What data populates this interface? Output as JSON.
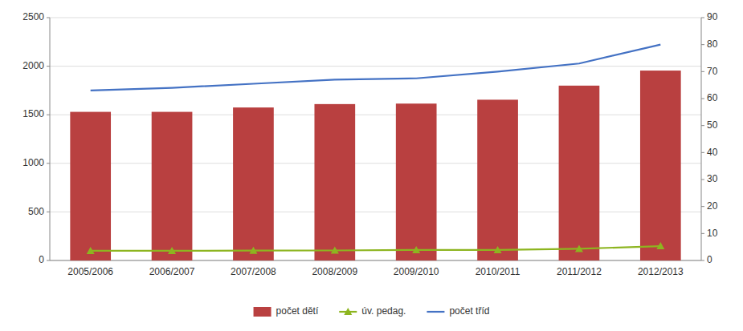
{
  "chart_data": {
    "type": "bar",
    "categories": [
      "2005/2006",
      "2006/2007",
      "2007/2008",
      "2008/2009",
      "2009/2010",
      "2010/2011",
      "2011/2012",
      "2012/2013"
    ],
    "series": [
      {
        "name": "počet dětí",
        "type": "bar",
        "color": "#b94040",
        "values": [
          1530,
          1530,
          1575,
          1610,
          1615,
          1655,
          1800,
          1955
        ]
      },
      {
        "name": "úv. pedag.",
        "type": "line",
        "color": "#8db520",
        "marker": "triangle",
        "values": [
          100,
          100,
          102,
          103,
          108,
          108,
          120,
          148
        ]
      },
      {
        "name": "počet tříd",
        "type": "line",
        "color": "#4472c4",
        "axis": "y2",
        "values": [
          63,
          64,
          65.5,
          67,
          67.5,
          70,
          73,
          80
        ]
      }
    ],
    "ylim": [
      0,
      2500
    ],
    "yticks": [
      0,
      500,
      1000,
      1500,
      2000,
      2500
    ],
    "y2lim": [
      0,
      90
    ],
    "y2ticks": [
      0,
      10,
      20,
      30,
      40,
      50,
      60,
      70,
      80,
      90
    ],
    "grid": true,
    "legend": "bottom"
  }
}
